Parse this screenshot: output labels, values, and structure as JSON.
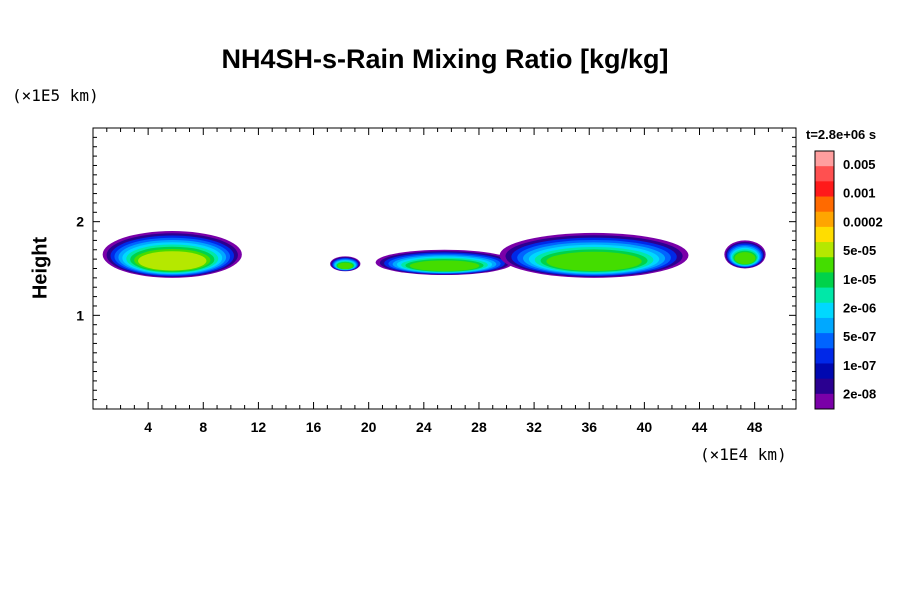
{
  "chart_data": {
    "type": "heatmap",
    "title": "NH4SH-s-Rain Mixing Ratio [kg/kg]",
    "ylabel": "Height",
    "x_multiplier": "(×1E4 km)",
    "y_multiplier": "(×1E5 km)",
    "time_label": "t=2.8e+06 s",
    "xlim": [
      0,
      51
    ],
    "ylim": [
      0,
      3
    ],
    "x_ticks": [
      4,
      8,
      12,
      16,
      20,
      24,
      28,
      32,
      36,
      40,
      44,
      48
    ],
    "y_ticks": [
      1,
      2
    ],
    "colorbar": {
      "labels": [
        "0.005",
        "0.001",
        "0.0002",
        "5e-05",
        "1e-05",
        "2e-06",
        "5e-07",
        "1e-07",
        "2e-08"
      ],
      "colors": [
        "#ff9e9e",
        "#ff5050",
        "#ff1a1a",
        "#ff6a00",
        "#ffa500",
        "#ffdd00",
        "#b5e800",
        "#44dd00",
        "#00d24a",
        "#00e8a8",
        "#00d8ff",
        "#00a8ff",
        "#0064ff",
        "#0028e8",
        "#0008b0",
        "#2a0090",
        "#7a00a8"
      ]
    },
    "regions": [
      {
        "x": [
          0.7,
          10.8
        ],
        "y": [
          1.4,
          1.9
        ],
        "peak": "5e-05"
      },
      {
        "x": [
          17.2,
          19.4
        ],
        "y": [
          1.47,
          1.63
        ],
        "peak": "1e-05"
      },
      {
        "x": [
          20.5,
          30.5
        ],
        "y": [
          1.43,
          1.7
        ],
        "peak": "1e-05"
      },
      {
        "x": [
          29.5,
          43.2
        ],
        "y": [
          1.4,
          1.88
        ],
        "peak": "1e-05"
      },
      {
        "x": [
          45.8,
          48.8
        ],
        "y": [
          1.5,
          1.8
        ],
        "peak": "1e-05"
      }
    ]
  }
}
